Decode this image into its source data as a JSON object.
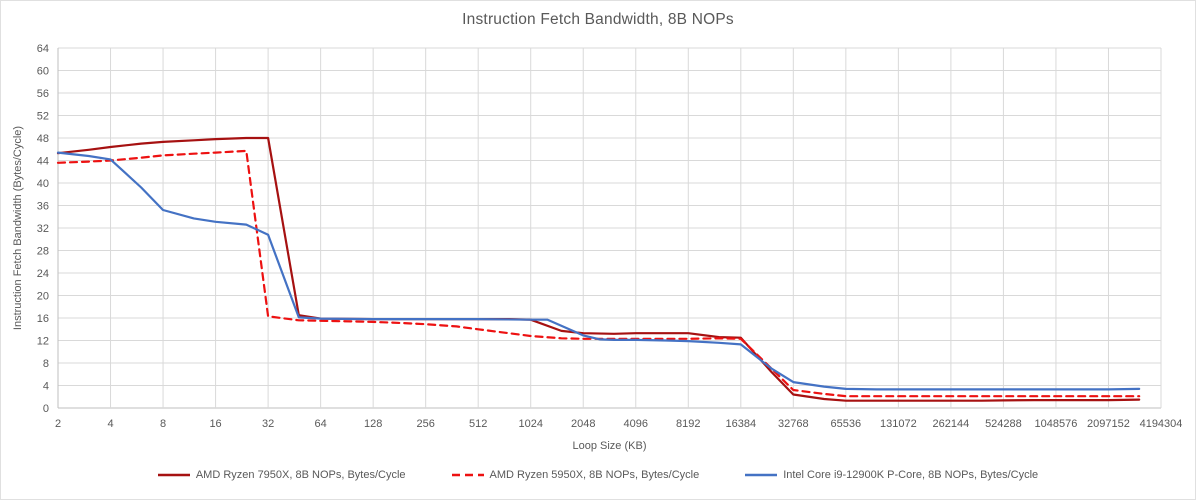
{
  "window": {
    "background": "#ffffff",
    "border_color": "#e0e0e0"
  },
  "chart_data": {
    "type": "line",
    "title": "Instruction Fetch Bandwidth, 8B NOPs",
    "xlabel": "Loop Size (KB)",
    "ylabel": "Instruction Fetch Bandwidth (Bytes/Cycle)",
    "x_scale": "log2",
    "xlim": [
      2,
      4194304
    ],
    "ylim": [
      0,
      64
    ],
    "x_ticks": [
      2,
      4,
      8,
      16,
      32,
      64,
      128,
      256,
      512,
      1024,
      2048,
      4096,
      8192,
      16384,
      32768,
      65536,
      131072,
      262144,
      524288,
      1048576,
      2097152,
      4194304
    ],
    "y_ticks": [
      0,
      4,
      8,
      12,
      16,
      20,
      24,
      28,
      32,
      36,
      40,
      44,
      48,
      52,
      56,
      60,
      64
    ],
    "grid": true,
    "legend_position": "bottom",
    "colors": {
      "gridline": "#d9d9d9",
      "axis_line": "#bfbfbf",
      "tick_text": "#595959",
      "title_text": "#595959"
    },
    "series": [
      {
        "name": "AMD Ryzen 7950X, 8B NOPs, Bytes/Cycle",
        "color": "#a61111",
        "dash": "solid",
        "points": [
          [
            2,
            45.3
          ],
          [
            3,
            45.9
          ],
          [
            4,
            46.4
          ],
          [
            6,
            47.0
          ],
          [
            8,
            47.3
          ],
          [
            12,
            47.6
          ],
          [
            16,
            47.8
          ],
          [
            24,
            48
          ],
          [
            32,
            48
          ],
          [
            48,
            16.5
          ],
          [
            64,
            15.9
          ],
          [
            128,
            15.8
          ],
          [
            256,
            15.8
          ],
          [
            512,
            15.8
          ],
          [
            768,
            15.8
          ],
          [
            1024,
            15.7
          ],
          [
            1536,
            13.7
          ],
          [
            2048,
            13.3
          ],
          [
            3072,
            13.2
          ],
          [
            4096,
            13.3
          ],
          [
            6144,
            13.3
          ],
          [
            8192,
            13.3
          ],
          [
            12288,
            12.6
          ],
          [
            16384,
            12.5
          ],
          [
            24576,
            6.4
          ],
          [
            32768,
            2.4
          ],
          [
            49152,
            1.6
          ],
          [
            65536,
            1.3
          ],
          [
            98304,
            1.3
          ],
          [
            131072,
            1.3
          ],
          [
            196608,
            1.3
          ],
          [
            262144,
            1.3
          ],
          [
            393216,
            1.3
          ],
          [
            524288,
            1.35
          ],
          [
            786432,
            1.4
          ],
          [
            1048576,
            1.4
          ],
          [
            1572864,
            1.4
          ],
          [
            2097152,
            1.4
          ],
          [
            3145728,
            1.5
          ]
        ]
      },
      {
        "name": "AMD Ryzen 5950X, 8B NOPs, Bytes/Cycle",
        "color": "#ed1111",
        "dash": "dashed",
        "points": [
          [
            2,
            43.6
          ],
          [
            3,
            43.8
          ],
          [
            4,
            44.0
          ],
          [
            6,
            44.5
          ],
          [
            8,
            44.9
          ],
          [
            12,
            45.2
          ],
          [
            16,
            45.4
          ],
          [
            24,
            45.7
          ],
          [
            32,
            16.3
          ],
          [
            48,
            15.6
          ],
          [
            64,
            15.5
          ],
          [
            96,
            15.4
          ],
          [
            128,
            15.3
          ],
          [
            192,
            15.1
          ],
          [
            256,
            14.9
          ],
          [
            384,
            14.5
          ],
          [
            512,
            14.0
          ],
          [
            768,
            13.3
          ],
          [
            1024,
            12.8
          ],
          [
            1536,
            12.4
          ],
          [
            2048,
            12.3
          ],
          [
            3072,
            12.3
          ],
          [
            4096,
            12.3
          ],
          [
            6144,
            12.3
          ],
          [
            8192,
            12.3
          ],
          [
            12288,
            12.4
          ],
          [
            16384,
            12.3
          ],
          [
            24576,
            7.0
          ],
          [
            32768,
            3.2
          ],
          [
            49152,
            2.5
          ],
          [
            65536,
            2.1
          ],
          [
            131072,
            2.1
          ],
          [
            262144,
            2.1
          ],
          [
            524288,
            2.1
          ],
          [
            1048576,
            2.1
          ],
          [
            2097152,
            2.1
          ],
          [
            3145728,
            2.1
          ]
        ]
      },
      {
        "name": "Intel Core i9-12900K P-Core, 8B NOPs, Bytes/Cycle",
        "color": "#4472c4",
        "dash": "solid",
        "points": [
          [
            2,
            45.4
          ],
          [
            3,
            44.8
          ],
          [
            4,
            44.2
          ],
          [
            6,
            39.2
          ],
          [
            8,
            35.2
          ],
          [
            12,
            33.7
          ],
          [
            16,
            33.1
          ],
          [
            24,
            32.6
          ],
          [
            32,
            30.8
          ],
          [
            48,
            16.1
          ],
          [
            64,
            15.9
          ],
          [
            128,
            15.8
          ],
          [
            256,
            15.8
          ],
          [
            512,
            15.8
          ],
          [
            1024,
            15.7
          ],
          [
            1280,
            15.7
          ],
          [
            2048,
            12.9
          ],
          [
            2560,
            12.2
          ],
          [
            3072,
            12.1
          ],
          [
            4096,
            12.1
          ],
          [
            6144,
            12.0
          ],
          [
            8192,
            11.9
          ],
          [
            12288,
            11.6
          ],
          [
            16384,
            11.3
          ],
          [
            24576,
            7.0
          ],
          [
            32768,
            4.6
          ],
          [
            49152,
            3.8
          ],
          [
            65536,
            3.4
          ],
          [
            98304,
            3.3
          ],
          [
            131072,
            3.3
          ],
          [
            262144,
            3.3
          ],
          [
            524288,
            3.3
          ],
          [
            1048576,
            3.3
          ],
          [
            2097152,
            3.3
          ],
          [
            3145728,
            3.4
          ]
        ]
      }
    ]
  }
}
